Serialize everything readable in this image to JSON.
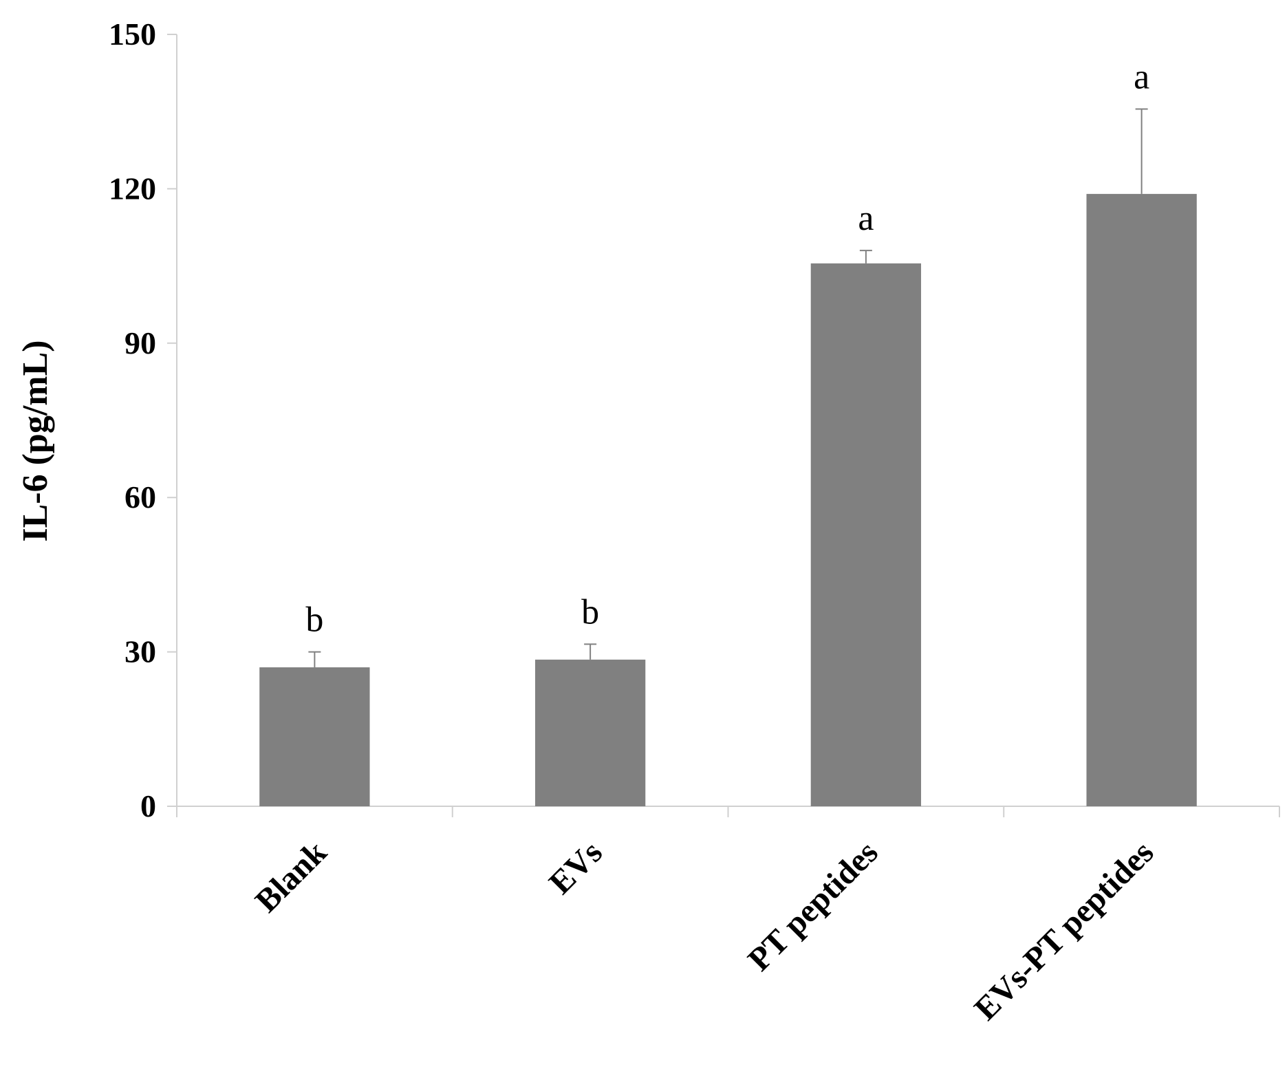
{
  "chart_data": {
    "type": "bar",
    "title": "",
    "xlabel": "",
    "ylabel": "IL-6 (pg/mL)",
    "categories": [
      "Blank",
      "EVs",
      "PT peptides",
      "EVs-PT peptides"
    ],
    "values": [
      27,
      28.5,
      105.5,
      119
    ],
    "errors": [
      3,
      3,
      2.5,
      16.5
    ],
    "significance": [
      "b",
      "b",
      "a",
      "a"
    ],
    "ylim": [
      0,
      150
    ],
    "yticks": [
      0,
      30,
      60,
      90,
      120,
      150
    ],
    "grid": false,
    "legend": "none",
    "bar_color": "#808080",
    "axis_color": "#d0d0d0"
  }
}
